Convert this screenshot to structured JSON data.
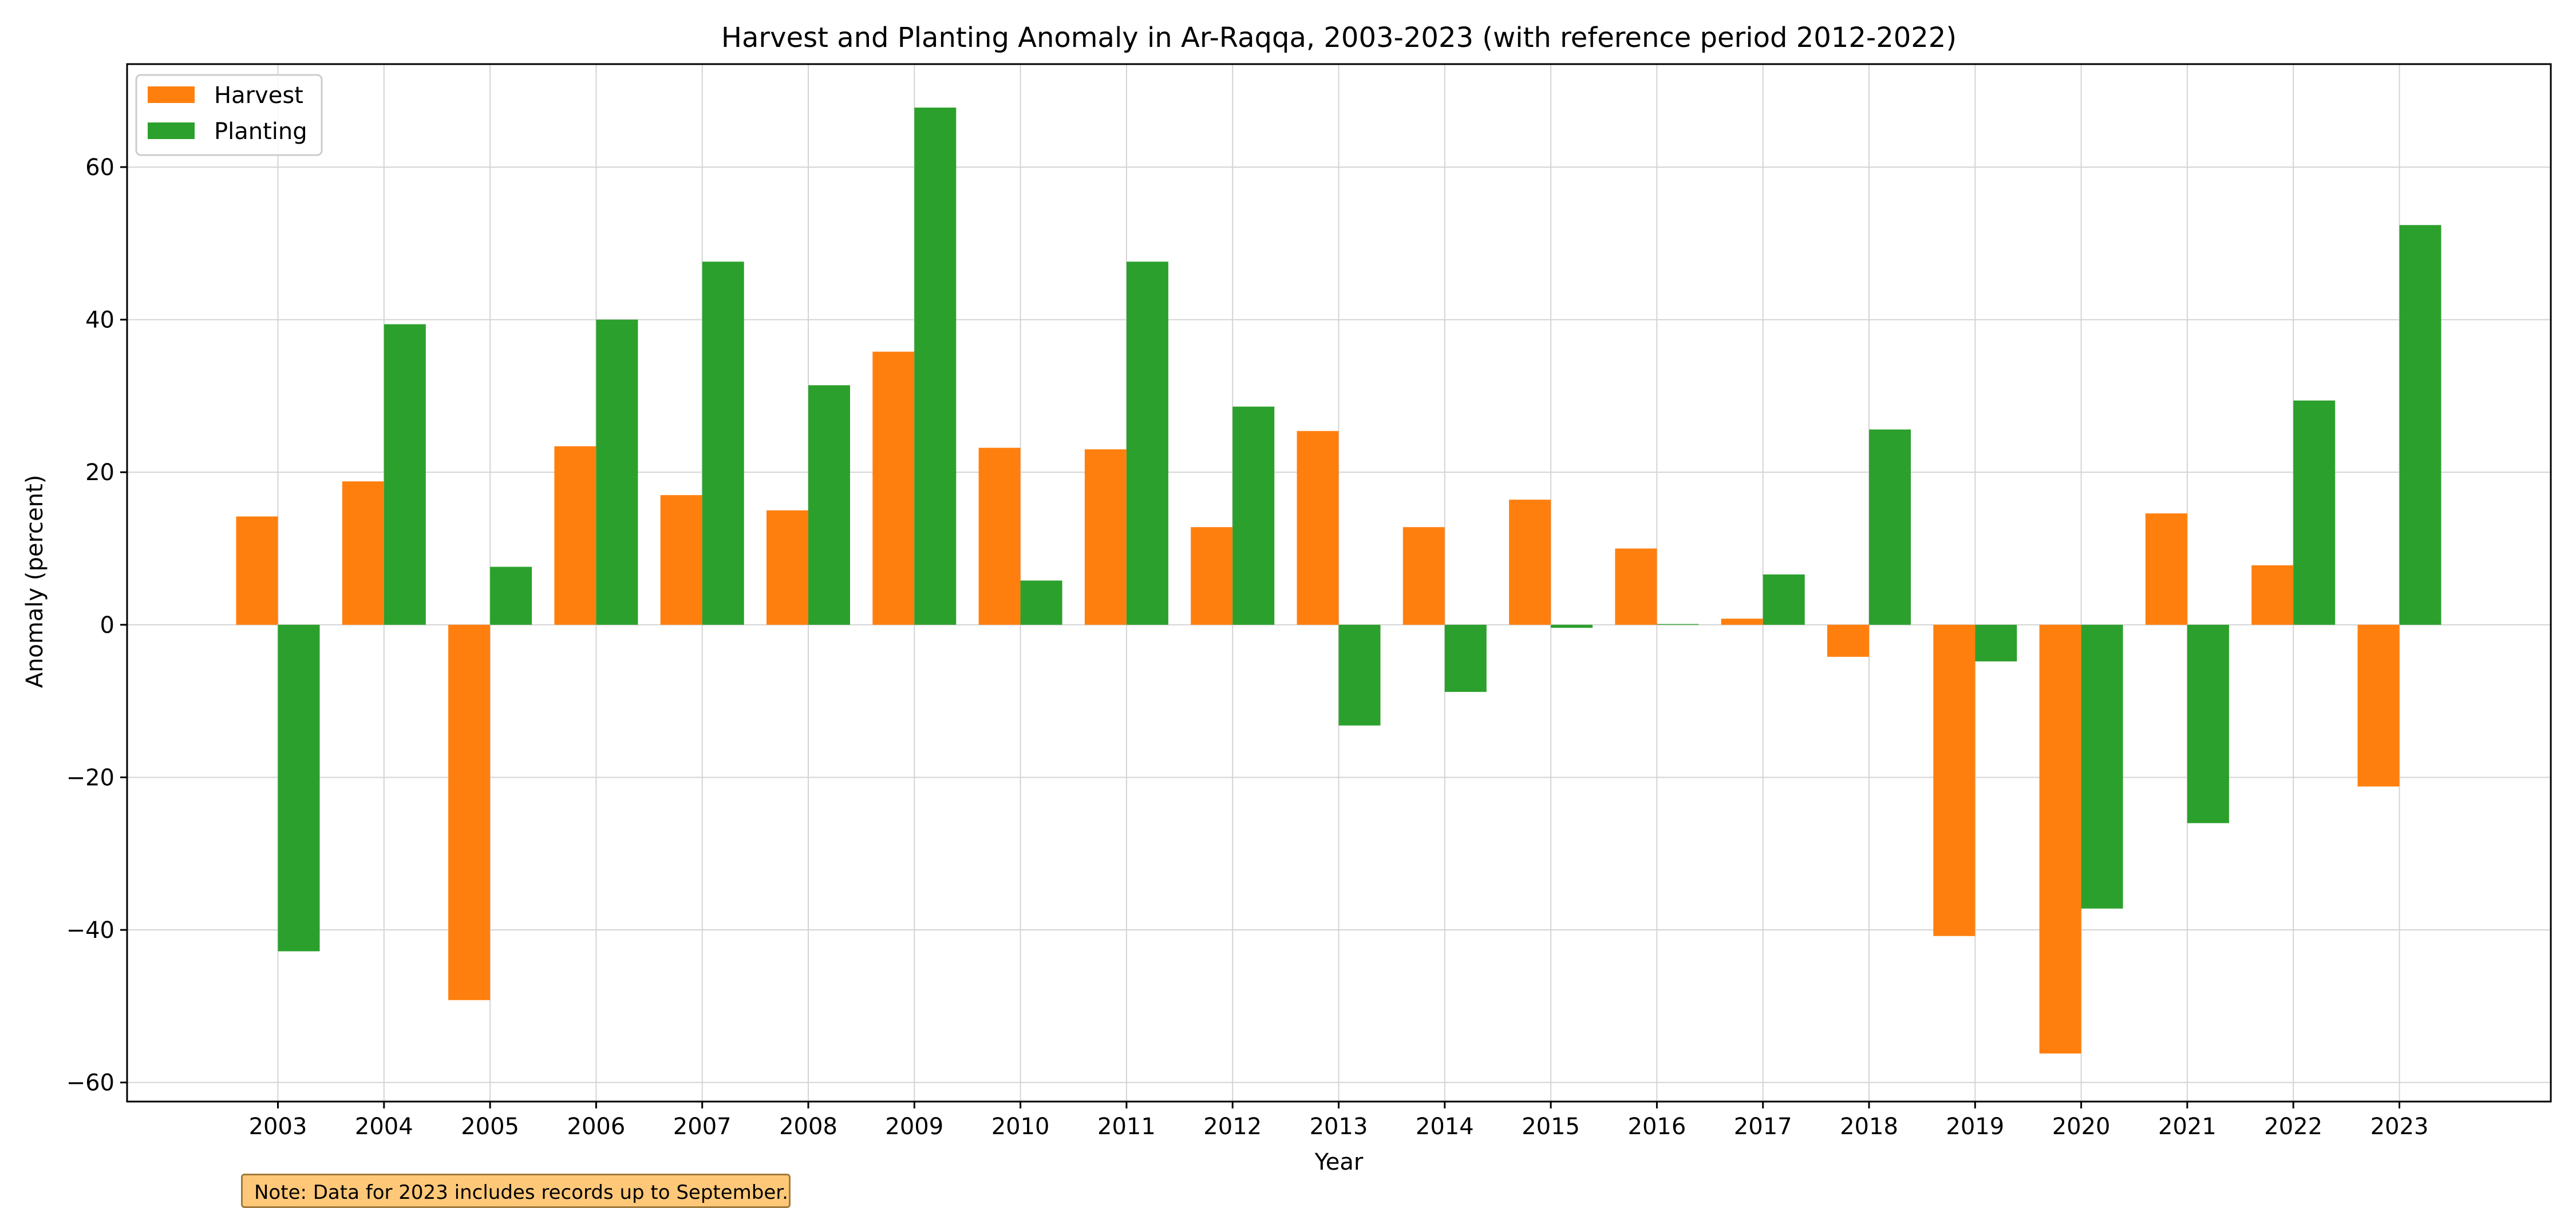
{
  "chart_data": {
    "type": "bar",
    "title": "Harvest and Planting Anomaly in Ar-Raqqa, 2003-2023 (with reference period 2012-2022)",
    "xlabel": "Year",
    "ylabel": "Anomaly (percent)",
    "categories": [
      "2003",
      "2004",
      "2005",
      "2006",
      "2007",
      "2008",
      "2009",
      "2010",
      "2011",
      "2012",
      "2013",
      "2014",
      "2015",
      "2016",
      "2017",
      "2018",
      "2019",
      "2020",
      "2021",
      "2022",
      "2023"
    ],
    "series": [
      {
        "name": "Harvest",
        "color": "#ff7f0e",
        "values": [
          14.2,
          18.8,
          -49.2,
          23.4,
          17.0,
          15.0,
          35.8,
          23.2,
          23.0,
          12.8,
          25.4,
          12.8,
          16.4,
          10.0,
          0.8,
          -4.2,
          -40.8,
          -56.2,
          14.6,
          7.8,
          -21.2
        ]
      },
      {
        "name": "Planting",
        "color": "#2ca02c",
        "values": [
          -42.8,
          39.4,
          7.6,
          40.0,
          47.6,
          31.4,
          67.8,
          5.8,
          47.6,
          28.6,
          -13.2,
          -8.8,
          -0.4,
          0.1,
          6.6,
          25.6,
          -4.8,
          -37.2,
          -26.0,
          29.4,
          52.4
        ]
      }
    ],
    "yticks": [
      -60,
      -40,
      -20,
      0,
      20,
      40,
      60
    ],
    "ytick_labels": [
      "−60",
      "−40",
      "−20",
      "0",
      "20",
      "40",
      "60"
    ],
    "ylim": [
      -62.5,
      73.5
    ],
    "grid": true,
    "legend": {
      "position": "top-left"
    }
  },
  "note": "Note: Data for 2023 includes records up to September."
}
